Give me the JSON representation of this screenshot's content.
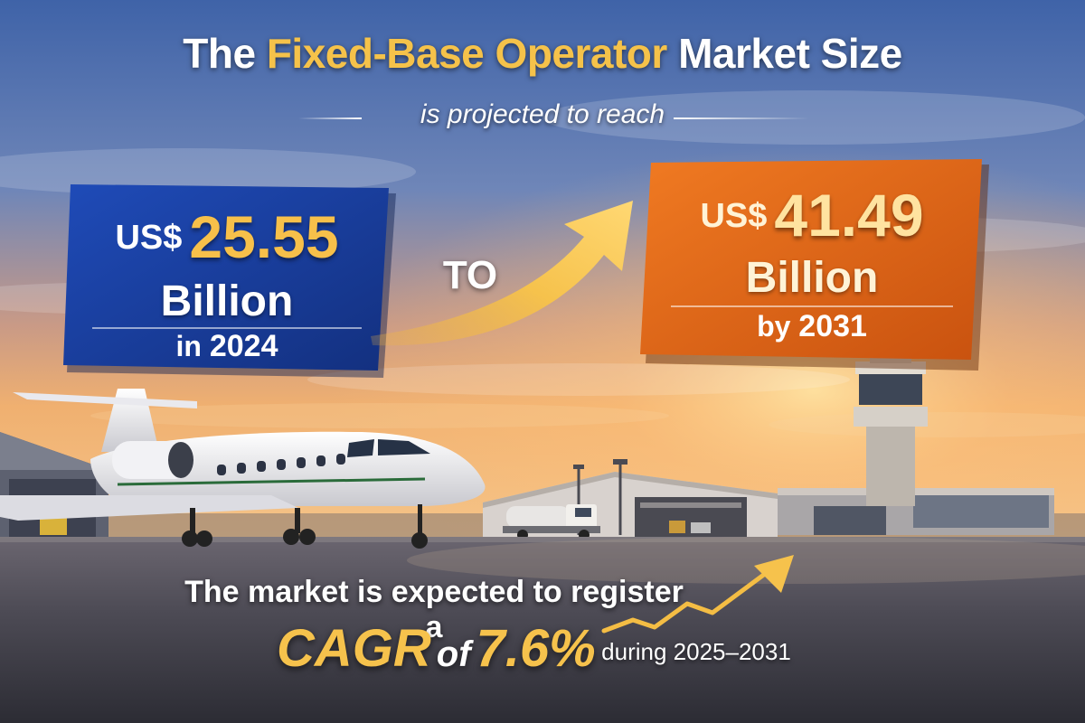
{
  "headline": {
    "prefix": "The",
    "highlight": "Fixed-Base Operator",
    "suffix": "Market Size",
    "subtitle": "is projected to reach"
  },
  "start_value": {
    "currency": "US$",
    "amount": "25.55",
    "unit": "Billion",
    "year_prefix": "in",
    "year": "2024"
  },
  "connector": {
    "label": "TO"
  },
  "end_value": {
    "currency": "US$",
    "amount": "41.49",
    "unit": "Billion",
    "year_prefix": "by",
    "year": "2031"
  },
  "growth": {
    "lead": "The market is expected to register a",
    "cagr_label": "CAGR",
    "of_label": "of",
    "cagr_value": "7.6%",
    "period": "during 2025–2031"
  },
  "colors": {
    "gold": "#f5c24a",
    "blue_card": "#1b3f9c",
    "orange_card": "#e0671c"
  },
  "icons": {
    "arrow": "arrow-up-right-icon",
    "trend": "trend-up-icon",
    "jet": "business-jet",
    "tower": "control-tower",
    "hangar": "hangar",
    "truck": "fuel-truck"
  }
}
